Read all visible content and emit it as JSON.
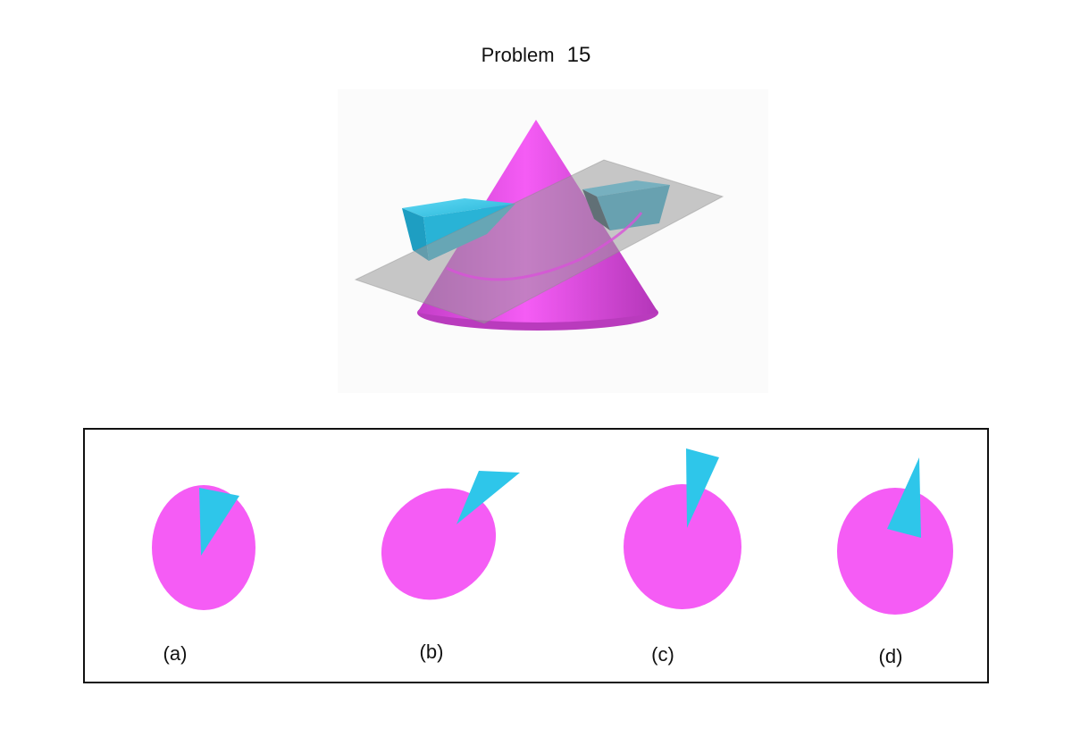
{
  "title": {
    "label": "Problem",
    "number": "15"
  },
  "colors": {
    "cone": "#f55cf5",
    "wedge": "#2ec6ea",
    "plane": "#9a9a9a"
  },
  "options": [
    {
      "label": "(a)"
    },
    {
      "label": "(b)"
    },
    {
      "label": "(c)"
    },
    {
      "label": "(d)"
    }
  ]
}
